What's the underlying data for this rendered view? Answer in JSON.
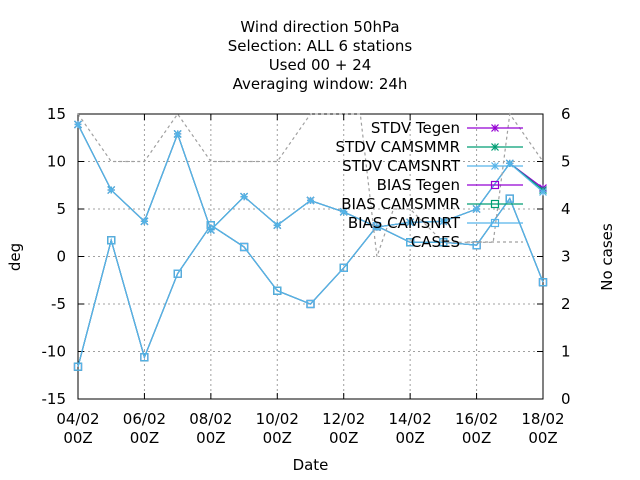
{
  "chart_data": {
    "type": "line",
    "title_lines": [
      "Wind direction 50hPa",
      "Selection: ALL      6 stations",
      "Used  00 + 24",
      "Averaging window: 24h"
    ],
    "xlabel": "Date",
    "ylabel": "deg",
    "y2label": "No cases",
    "x_ticks": [
      {
        "day": 4,
        "line1": "04/02",
        "line2": "00Z"
      },
      {
        "day": 6,
        "line1": "06/02",
        "line2": "00Z"
      },
      {
        "day": 8,
        "line1": "08/02",
        "line2": "00Z"
      },
      {
        "day": 10,
        "line1": "10/02",
        "line2": "00Z"
      },
      {
        "day": 12,
        "line1": "12/02",
        "line2": "00Z"
      },
      {
        "day": 14,
        "line1": "14/02",
        "line2": "00Z"
      },
      {
        "day": 16,
        "line1": "16/02",
        "line2": "00Z"
      },
      {
        "day": 18,
        "line1": "18/02",
        "line2": "00Z"
      }
    ],
    "xlim": [
      4,
      18
    ],
    "ylim": [
      -15,
      15
    ],
    "y_ticks": [
      -15,
      -10,
      -5,
      0,
      5,
      10,
      15
    ],
    "y2lim": [
      0,
      6
    ],
    "y2_ticks": [
      0,
      1,
      2,
      3,
      4,
      5,
      6
    ],
    "grid": true,
    "legend_position": "top-right",
    "series": [
      {
        "name": "STDV Tegen",
        "color": "#9400d3",
        "marker": "star",
        "axis": "y1",
        "x": [
          4,
          5,
          6,
          7,
          8,
          9,
          10,
          11,
          12,
          13,
          14,
          15,
          16,
          17,
          18
        ],
        "y": [
          13.9,
          7.0,
          3.7,
          12.9,
          2.8,
          6.3,
          3.3,
          5.9,
          4.7,
          3.1,
          3.6,
          3.7,
          5.0,
          9.8,
          7.2
        ]
      },
      {
        "name": "STDV CAMSMMR",
        "color": "#009e73",
        "marker": "star",
        "axis": "y1",
        "x": [
          4,
          5,
          6,
          7,
          8,
          9,
          10,
          11,
          12,
          13,
          14,
          15,
          16,
          17,
          18
        ],
        "y": [
          13.9,
          7.0,
          3.7,
          12.9,
          2.8,
          6.3,
          3.3,
          5.9,
          4.7,
          3.1,
          3.6,
          3.7,
          5.0,
          9.8,
          7.0
        ]
      },
      {
        "name": "STDV CAMSNRT",
        "color": "#56b4e9",
        "marker": "star",
        "axis": "y1",
        "x": [
          4,
          5,
          6,
          7,
          8,
          9,
          10,
          11,
          12,
          13,
          14,
          15,
          16,
          17,
          18
        ],
        "y": [
          13.9,
          7.0,
          3.7,
          12.9,
          2.8,
          6.3,
          3.3,
          5.9,
          4.7,
          3.1,
          3.6,
          3.7,
          5.0,
          9.8,
          6.8
        ]
      },
      {
        "name": "BIAS Tegen",
        "color": "#9400d3",
        "marker": "square",
        "axis": "y1",
        "x": [
          4,
          5,
          6,
          7,
          8,
          9,
          10,
          11,
          12,
          13,
          14,
          15,
          16,
          17,
          18
        ],
        "y": [
          -11.6,
          1.7,
          -10.6,
          -1.8,
          3.3,
          1.0,
          -3.6,
          -5.0,
          -1.2,
          3.2,
          1.5,
          1.5,
          1.2,
          6.1,
          -2.7
        ]
      },
      {
        "name": "BIAS CAMSMMR",
        "color": "#009e73",
        "marker": "square",
        "axis": "y1",
        "x": [
          4,
          5,
          6,
          7,
          8,
          9,
          10,
          11,
          12,
          13,
          14,
          15,
          16,
          17,
          18
        ],
        "y": [
          -11.6,
          1.7,
          -10.6,
          -1.8,
          3.3,
          1.0,
          -3.6,
          -5.0,
          -1.2,
          3.2,
          1.5,
          1.5,
          1.2,
          6.1,
          -2.7
        ]
      },
      {
        "name": "BIAS CAMSNRT",
        "color": "#56b4e9",
        "marker": "square",
        "axis": "y1",
        "x": [
          4,
          5,
          6,
          7,
          8,
          9,
          10,
          11,
          12,
          13,
          14,
          15,
          16,
          17,
          18
        ],
        "y": [
          -11.6,
          1.7,
          -10.6,
          -1.8,
          3.3,
          1.0,
          -3.6,
          -5.0,
          -1.2,
          3.2,
          1.5,
          1.5,
          1.2,
          6.1,
          -2.7
        ]
      },
      {
        "name": "CASES",
        "color": "#a0a0a0",
        "marker": "none",
        "dashed": true,
        "axis": "y2",
        "x": [
          4,
          5,
          6,
          7,
          8,
          9,
          10,
          11,
          12,
          12.5,
          13,
          13.5,
          14,
          15,
          16,
          16.5,
          17,
          18
        ],
        "y": [
          6,
          5,
          5,
          6,
          5,
          5,
          5,
          6,
          6,
          6,
          3,
          4,
          4,
          3.3,
          3.3,
          3.3,
          6,
          5
        ]
      }
    ]
  }
}
